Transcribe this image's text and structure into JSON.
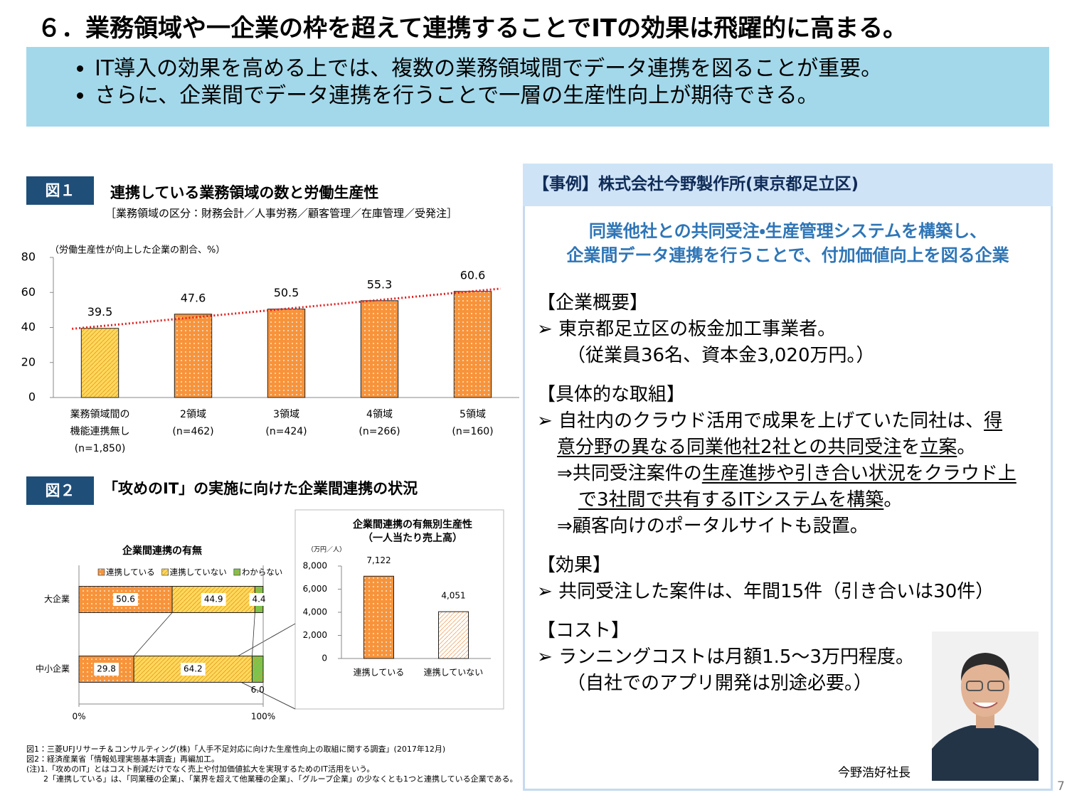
{
  "slide_title": "６．業務領域や一企業の枠を超えて連携することでITの効果は飛躍的に高まる。",
  "summary": [
    "IT導入の効果を高める上では、複数の業務領域間でデータ連携を図ることが重要。",
    "さらに、企業間でデータ連携を行うことで一層の生産性向上が期待できる。"
  ],
  "fig1": {
    "label": "図１",
    "title": "連携している業務領域の数と労働生産性",
    "note": "［業務領域の区分：財務会計／人事労務／顧客管理／在庫管理／受発注］"
  },
  "fig2": {
    "label": "図２",
    "title": "「攻めのIT」の実施に向けた企業間連携の状況"
  },
  "case": {
    "header": "【事例】株式会社今野製作所(東京都足立区)",
    "lead": [
      "同業他社との共同受注・生産管理システムを構築し、",
      "企業間データ連携を行うことで、付加価値向上を図る企業"
    ],
    "sections": [
      {
        "heading": "【企業概要】",
        "items": [
          {
            "marker": "➢",
            "segments": [
              {
                "text": "東京都足立区の板金加工事業者。"
              }
            ]
          },
          {
            "segments": [
              {
                "text": "（従業員36名、資本金3,020万円。）"
              }
            ]
          }
        ]
      },
      {
        "heading": "【具体的な取組】",
        "items": [
          {
            "marker": "➢",
            "segments": [
              {
                "text": "自社内のクラウド活用で成果を上げていた同社は、"
              },
              {
                "text": "得意分野の異なる同業他社2社との共同受注",
                "underline": true
              },
              {
                "text": "を"
              },
              {
                "text": "立案",
                "underline": true
              },
              {
                "text": "。"
              }
            ]
          },
          {
            "marker": "⇒",
            "segments": [
              {
                "text": "共同受注案件の"
              },
              {
                "text": "生産進捗や引き合い状況をクラウド上で3社間で共有するITシステムを構築",
                "underline": true
              },
              {
                "text": "。"
              }
            ]
          },
          {
            "marker": "⇒",
            "segments": [
              {
                "text": "顧客向けのポータルサイトも設置。"
              }
            ]
          }
        ]
      },
      {
        "heading": "【効果】",
        "items": [
          {
            "marker": "➢",
            "segments": [
              {
                "text": "共同受注した案件は、年間15件（引き合いは30件）"
              }
            ]
          }
        ]
      },
      {
        "heading": "【コスト】",
        "items": [
          {
            "marker": "➢",
            "segments": [
              {
                "text": "ランニングコストは月額1.5～3万円程度。"
              }
            ]
          },
          {
            "segments": [
              {
                "text": "（自社でのアプリ開発は別途必要。）"
              }
            ]
          }
        ]
      }
    ],
    "photo_caption": "今野浩好社長"
  },
  "footnotes": [
    "図1：三菱UFJリサーチ＆コンサルティング(株)「人手不足対応に向けた生産性向上の取組に関する調査」(2017年12月)",
    "図2：経済産業省「情報処理実態基本調査」再編加工。",
    "(注)1.「攻めのIT」とはコスト削減だけでなく売上や付加価値拡大を実現するためのIT活用をいう。",
    "2「連携している」は、「同業種の企業」、「業界を超えて他業種の企業」、「グループ企業」の少なくとも1つと連携している企業である。"
  ],
  "page_number": 7,
  "chart_data": [
    {
      "type": "bar",
      "y_label": "（労働生産性が向上した企業の割合、%）",
      "categories": [
        [
          "業務領域間の",
          "機能連携無し",
          "(n=1,850)"
        ],
        [
          "2領域",
          "(n=462)"
        ],
        [
          "3領域",
          "(n=424)"
        ],
        [
          "4領域",
          "(n=266)"
        ],
        [
          "5領域",
          "(n=160)"
        ]
      ],
      "values": [
        39.5,
        47.6,
        50.5,
        55.3,
        60.6
      ],
      "colors": [
        "#ffd95a",
        "#f7943b",
        "#f7943b",
        "#f7943b",
        "#f7943b"
      ],
      "patterns": [
        "hatch",
        "dots",
        "dots",
        "dots",
        "dots"
      ],
      "ylim": [
        0,
        80
      ],
      "yticks": [
        0,
        20,
        40,
        60,
        80
      ],
      "trendline": true,
      "trendline_color": "#e02020"
    },
    {
      "type": "stacked_hbar",
      "title": "企業間連携の有無",
      "categories": [
        "大企業",
        "中小企業"
      ],
      "series": [
        {
          "name": "連携している",
          "color": "#f7943b",
          "pattern": "dots",
          "values": [
            50.6,
            29.8
          ]
        },
        {
          "name": "連携していない",
          "color": "#ffd95a",
          "pattern": "hatch",
          "values": [
            44.9,
            64.2
          ]
        },
        {
          "name": "わからない",
          "color": "#70c850",
          "pattern": "hatch",
          "values": [
            4.4,
            6.0
          ],
          "value_labels": [
            "4.4",
            "6.0"
          ]
        }
      ],
      "xlim": [
        0,
        100
      ],
      "xticks": [
        {
          "value": 0,
          "label": "0%"
        },
        {
          "value": 100,
          "label": "100%"
        }
      ]
    },
    {
      "type": "bar",
      "title": [
        "企業間連携の有無別生産性",
        "（一人当たり売上高）"
      ],
      "y_label": "（万円／人）",
      "categories": [
        [
          "連携している"
        ],
        [
          "連携していない"
        ]
      ],
      "values": [
        7122,
        4051
      ],
      "value_labels": [
        "7,122",
        "4,051"
      ],
      "colors": [
        "#f7943b",
        "#fbd1ae"
      ],
      "patterns": [
        "dots",
        "hatch"
      ],
      "ylim": [
        0,
        8000
      ],
      "yticks": [
        0,
        {
          "value": 2000,
          "label": "2,000"
        },
        {
          "value": 4000,
          "label": "4,000"
        },
        {
          "value": 6000,
          "label": "6,000"
        },
        {
          "value": 8000,
          "label": "8,000"
        }
      ]
    }
  ]
}
